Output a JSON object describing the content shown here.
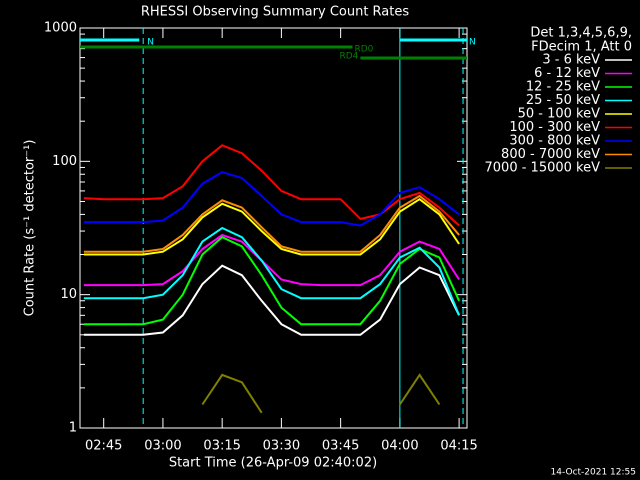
{
  "chart_data": {
    "type": "line",
    "title": "RHESSI Observing Summary Count Rates",
    "x_label": "Start Time (26-Apr-09 02:40:02)",
    "y_label": "Count Rate (s⁻¹ detector⁻¹)",
    "legend_header": [
      "Det 1,3,4,5,6,9,",
      "FDecim 1, Att 0"
    ],
    "footer": "14-Oct-2021 12:55",
    "log_y": true,
    "xlim": [
      "02:39",
      "04:17"
    ],
    "xticks": [
      "02:45",
      "03:00",
      "03:15",
      "03:30",
      "03:45",
      "04:00",
      "04:15"
    ],
    "ylim": [
      1,
      1000
    ],
    "yticks": [
      1,
      10,
      100,
      1000
    ],
    "x": [
      "02:40",
      "02:45",
      "02:50",
      "02:55",
      "03:00",
      "03:05",
      "03:10",
      "03:15",
      "03:20",
      "03:25",
      "03:30",
      "03:35",
      "03:40",
      "03:45",
      "03:50",
      "03:55",
      "04:00",
      "04:05",
      "04:10",
      "04:15"
    ],
    "series": [
      {
        "name": "3 - 6 keV",
        "color": "#ffffff",
        "values": [
          5,
          5,
          5,
          5,
          5.2,
          7,
          12,
          16.5,
          14,
          9,
          6,
          5,
          5,
          5,
          5,
          6.5,
          12,
          16,
          14,
          7
        ]
      },
      {
        "name": "6 - 12 keV",
        "color": "#ff00ff",
        "values": [
          11.8,
          11.8,
          11.8,
          11.8,
          12,
          15,
          22,
          28,
          25,
          18,
          13,
          12,
          11.8,
          11.8,
          11.8,
          14,
          21,
          25,
          22,
          13
        ]
      },
      {
        "name": "12 - 25 keV",
        "color": "#00ff00",
        "values": [
          6,
          6,
          6,
          6,
          6.5,
          10,
          20,
          27,
          23,
          14,
          8,
          6,
          6,
          6,
          6,
          9,
          17,
          22,
          19,
          9
        ]
      },
      {
        "name": "25 - 50 keV",
        "color": "#00ffff",
        "values": [
          9.4,
          9.4,
          9.4,
          9.4,
          10,
          14,
          25,
          31.6,
          27,
          18,
          11,
          9.4,
          9.4,
          9.4,
          9.4,
          12,
          19,
          22.5,
          16,
          7
        ]
      },
      {
        "name": "50 - 100 keV",
        "color": "#ffff00",
        "values": [
          20,
          20,
          20,
          20,
          21,
          26,
          38,
          48,
          42,
          30,
          22,
          20,
          20,
          20,
          20,
          26,
          42,
          52,
          40,
          24
        ]
      },
      {
        "name": "100 - 300 keV",
        "color": "#ff0000",
        "values": [
          53,
          52,
          52,
          52,
          53,
          65,
          100,
          132,
          115,
          85,
          60,
          52,
          52,
          52,
          37,
          40,
          52,
          58,
          45,
          33
        ]
      },
      {
        "name": "300 - 800 keV",
        "color": "#0000ff",
        "values": [
          35,
          35,
          35,
          35,
          36,
          45,
          68,
          83,
          75,
          55,
          40,
          35,
          35,
          35,
          33,
          40,
          58,
          64,
          52,
          40
        ]
      },
      {
        "name": "800 - 7000 keV",
        "color": "#ff8c00",
        "values": [
          21,
          21,
          21,
          21,
          22,
          28,
          40,
          51,
          45,
          32,
          23,
          21,
          21,
          21,
          21,
          28,
          45,
          55,
          42,
          28
        ]
      },
      {
        "name": "7000 - 15000 keV",
        "color": "#808000",
        "values": [
          null,
          null,
          null,
          null,
          null,
          null,
          1.5,
          2.5,
          2.2,
          1.3,
          null,
          null,
          null,
          null,
          null,
          null,
          1.5,
          2.5,
          1.5,
          null
        ]
      }
    ],
    "flags": [
      {
        "label": "N",
        "color": "#00ffff",
        "start": "02:39",
        "end": "02:54"
      },
      {
        "label": "N",
        "color": "#00ffff",
        "start": "04:00",
        "end": "04:17"
      },
      {
        "label": "RD0",
        "color": "#008000",
        "start": "02:39",
        "end": "03:48"
      },
      {
        "label": "RD4",
        "color": "#008000",
        "start": "03:50",
        "end": "04:17"
      }
    ],
    "vlines": [
      {
        "x": "02:55",
        "color": "#00ffff",
        "dashed": true
      },
      {
        "x": "04:00",
        "color": "#00ffff",
        "dashed": false
      },
      {
        "x": "04:16",
        "color": "#00ffff",
        "dashed": true
      }
    ]
  }
}
